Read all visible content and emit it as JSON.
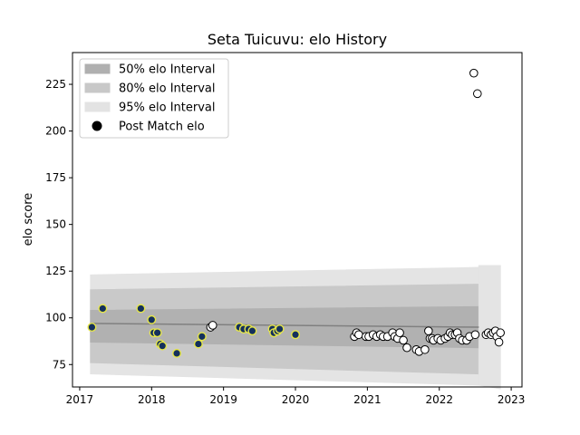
{
  "chart_data": {
    "type": "scatter",
    "title": "Seta Tuicuvu: elo History",
    "xlabel": "",
    "ylabel": "elo score",
    "xlim": [
      2016.9,
      2023.15
    ],
    "ylim": [
      63,
      242
    ],
    "x_ticks": [
      {
        "value": 2017,
        "label": "2017"
      },
      {
        "value": 2018,
        "label": "2018"
      },
      {
        "value": 2019,
        "label": "2019"
      },
      {
        "value": 2020,
        "label": "2020"
      },
      {
        "value": 2021,
        "label": "2021"
      },
      {
        "value": 2022,
        "label": "2022"
      },
      {
        "value": 2023,
        "label": "2023"
      }
    ],
    "y_ticks": [
      {
        "value": 75,
        "label": "75"
      },
      {
        "value": 100,
        "label": "100"
      },
      {
        "value": 125,
        "label": "125"
      },
      {
        "value": 150,
        "label": "150"
      },
      {
        "value": 175,
        "label": "175"
      },
      {
        "value": 200,
        "label": "200"
      },
      {
        "value": 225,
        "label": "225"
      }
    ],
    "legend": {
      "position": "top-left",
      "entries": [
        {
          "label": "50% elo Interval",
          "color": "#b0b0b0"
        },
        {
          "label": "80% elo Interval",
          "color": "#c8c8c8"
        },
        {
          "label": "95% elo Interval",
          "color": "#e3e3e3"
        },
        {
          "label": "Post Match elo",
          "color": "#000000"
        }
      ]
    },
    "bands": [
      {
        "name": "95% elo Interval",
        "x": [
          2017.15,
          2022.55
        ],
        "upper_start": 123,
        "upper_end": 127,
        "lower_start": 70,
        "lower_end": 64,
        "color": "#e3e3e3"
      },
      {
        "name": "80% elo Interval",
        "x": [
          2017.15,
          2022.55
        ],
        "upper_start": 115,
        "upper_end": 118,
        "lower_start": 76,
        "lower_end": 70,
        "color": "#c8c8c8"
      },
      {
        "name": "50% elo Interval",
        "x": [
          2017.15,
          2022.55
        ],
        "upper_start": 104,
        "upper_end": 106,
        "lower_start": 87,
        "lower_end": 84,
        "color": "#b0b0b0"
      },
      {
        "name": "95% elo Interval",
        "x": [
          2022.55,
          2022.85
        ],
        "upper_start": 128,
        "upper_end": 128,
        "lower_start": 64,
        "lower_end": 62,
        "color": "#e3e3e3"
      }
    ],
    "series": [
      {
        "marker": "navy-yellow",
        "x": [
          2017.17,
          2017.32,
          2017.85,
          2018.0,
          2018.03,
          2018.08,
          2018.12,
          2018.15,
          2018.35,
          2018.65,
          2018.7,
          2019.22,
          2019.28,
          2019.35,
          2019.4,
          2019.68,
          2019.7,
          2019.75,
          2019.78,
          2020.0
        ],
        "y": [
          95,
          105,
          105,
          99,
          92,
          92,
          86,
          85,
          81,
          86,
          90,
          95,
          94,
          94,
          93,
          94,
          92,
          93,
          94,
          91
        ]
      },
      {
        "marker": "white",
        "x": [
          2018.82,
          2018.85,
          2020.82,
          2020.85,
          2020.88,
          2020.98,
          2021.02,
          2021.08,
          2021.13,
          2021.18,
          2021.22,
          2021.28,
          2021.35,
          2021.38,
          2021.42,
          2021.45,
          2021.5,
          2021.55,
          2021.68,
          2021.72,
          2021.8,
          2021.85,
          2021.87,
          2021.9,
          2021.92,
          2021.98,
          2022.02,
          2022.08,
          2022.12,
          2022.15,
          2022.18,
          2022.22,
          2022.25,
          2022.28,
          2022.32,
          2022.38,
          2022.42,
          2022.48,
          2022.53,
          2022.65,
          2022.68,
          2022.72,
          2022.75,
          2022.78,
          2022.8,
          2022.83,
          2022.85,
          2022.5
        ],
        "y": [
          95,
          96,
          90,
          92,
          91,
          90,
          90,
          91,
          90,
          91,
          90,
          90,
          92,
          90,
          89,
          92,
          88,
          84,
          83,
          82,
          83,
          93,
          89,
          89,
          88,
          89,
          88,
          89,
          90,
          92,
          91,
          91,
          92,
          89,
          88,
          88,
          90,
          231,
          220,
          91,
          92,
          91,
          92,
          93,
          90,
          87,
          92,
          91
        ]
      }
    ],
    "mean_line": {
      "x": [
        2017.15,
        2022.55
      ],
      "y": [
        97,
        95
      ]
    }
  }
}
